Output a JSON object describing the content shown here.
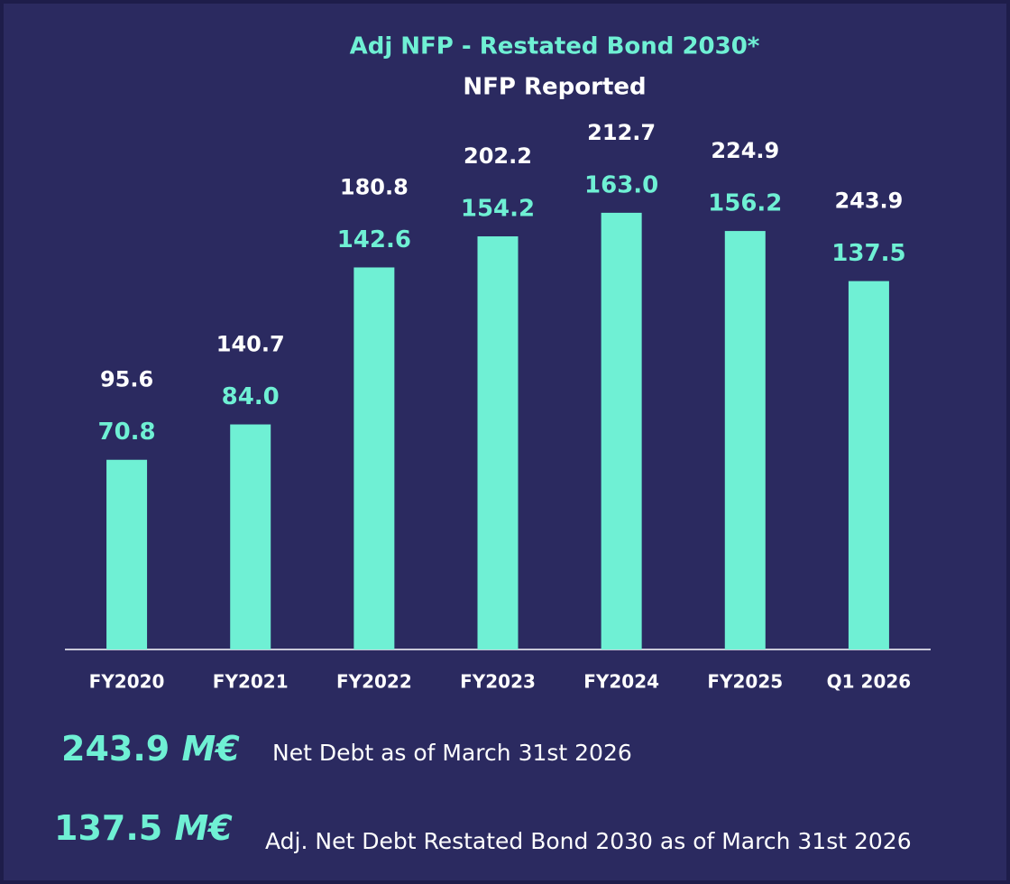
{
  "chart_data": {
    "type": "bar",
    "categories": [
      "FY2020",
      "FY2021",
      "FY2022",
      "FY2023",
      "FY2024",
      "FY2025",
      "Q1 2026"
    ],
    "series": [
      {
        "name": "Adj NFP - Restated Bond 2030*",
        "color": "#6ff0d4",
        "values": [
          70.8,
          84.0,
          142.6,
          154.2,
          163.0,
          156.2,
          137.5
        ],
        "value_labels": [
          "70.8",
          "84.0",
          "142.6",
          "154.2",
          "163.0",
          "156.2",
          "137.5"
        ]
      },
      {
        "name": "NFP Reported",
        "color": "#ffffff",
        "values": [
          95.6,
          140.7,
          180.8,
          202.2,
          212.7,
          224.9,
          243.9
        ],
        "value_labels": [
          "95.6",
          "140.7",
          "180.8",
          "202.2",
          "212.7",
          "224.9",
          "243.9"
        ]
      }
    ],
    "notes": [
      {
        "amount": "243.9",
        "unit": "M€",
        "text": "Net Debt as of March 31st 2026"
      },
      {
        "amount": "137.5",
        "unit": "M€",
        "text": "Adj. Net Debt Restated Bond 2030 as of  March 31st 2026"
      }
    ]
  }
}
